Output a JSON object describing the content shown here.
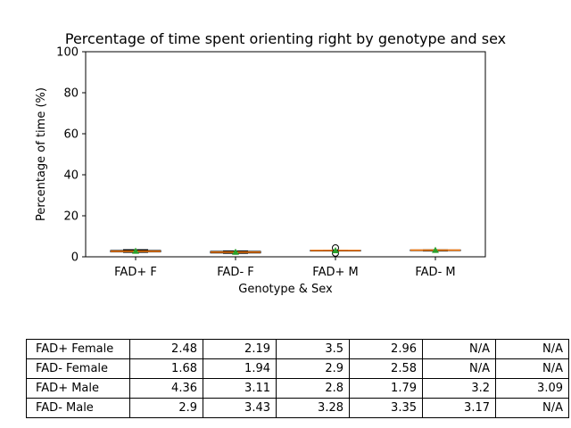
{
  "chart_data": {
    "type": "box",
    "title": "Percentage of time spent orienting right by genotype and sex",
    "xlabel": "Genotype & Sex",
    "ylabel": "Percentage of time (%)",
    "ylim": [
      0,
      100
    ],
    "yticks": [
      "0",
      "20",
      "40",
      "60",
      "80",
      "100"
    ],
    "categories": [
      "FAD+ F",
      "FAD- F",
      "FAD+ M",
      "FAD- M"
    ],
    "groups": [
      {
        "category": "FAD+ F",
        "values": [
          2.48,
          2.19,
          3.5,
          2.96
        ]
      },
      {
        "category": "FAD- F",
        "values": [
          1.68,
          1.94,
          2.9,
          2.58
        ]
      },
      {
        "category": "FAD+ M",
        "values": [
          4.36,
          3.11,
          2.8,
          1.79,
          3.2,
          3.09
        ]
      },
      {
        "category": "FAD- M",
        "values": [
          2.9,
          3.43,
          3.28,
          3.35,
          3.17
        ]
      }
    ],
    "colors": {
      "median": "#ff7f0e",
      "mean": "#2ca02c",
      "box": "#000000"
    }
  },
  "table": {
    "rows": [
      {
        "label": "FAD+ Female",
        "cells": [
          "2.48",
          "2.19",
          "3.5",
          "2.96",
          "N/A",
          "N/A"
        ]
      },
      {
        "label": "FAD- Female",
        "cells": [
          "1.68",
          "1.94",
          "2.9",
          "2.58",
          "N/A",
          "N/A"
        ]
      },
      {
        "label": "FAD+ Male",
        "cells": [
          "4.36",
          "3.11",
          "2.8",
          "1.79",
          "3.2",
          "3.09"
        ]
      },
      {
        "label": "FAD- Male",
        "cells": [
          "2.9",
          "3.43",
          "3.28",
          "3.35",
          "3.17",
          "N/A"
        ]
      }
    ]
  }
}
